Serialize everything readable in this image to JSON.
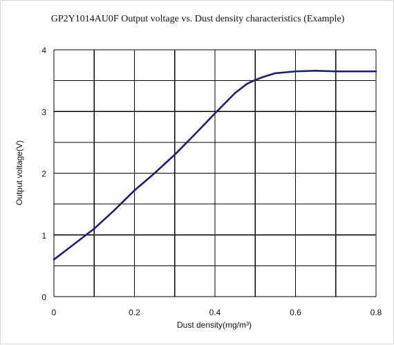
{
  "chart_data": {
    "type": "line",
    "title": "GP2Y1014AU0F Output voltage vs. Dust density characteristics (Example)",
    "xlabel": "Dust density(mg/m³)",
    "ylabel": "Output voltage(V)",
    "xlim": [
      0,
      0.8
    ],
    "ylim": [
      0,
      4
    ],
    "x_ticks": [
      0,
      0.1,
      0.2,
      0.3,
      0.4,
      0.5,
      0.6,
      0.7,
      0.8
    ],
    "y_ticks": [
      0,
      0.5,
      1,
      1.5,
      2,
      2.5,
      3,
      3.5,
      4
    ],
    "x_tick_labels": [
      "0",
      "0.2",
      "0.4",
      "0.6",
      "0.8"
    ],
    "y_tick_labels": [
      "0",
      "1",
      "2",
      "3",
      "4"
    ],
    "grid": true,
    "series": [
      {
        "x": [
          0,
          0.05,
          0.1,
          0.15,
          0.2,
          0.25,
          0.3,
          0.35,
          0.4,
          0.45,
          0.48,
          0.5,
          0.52,
          0.55,
          0.6,
          0.65,
          0.7,
          0.75,
          0.8
        ],
        "y": [
          0.6,
          0.85,
          1.1,
          1.4,
          1.72,
          2.0,
          2.3,
          2.63,
          2.97,
          3.3,
          3.45,
          3.51,
          3.56,
          3.62,
          3.65,
          3.66,
          3.65,
          3.65,
          3.65
        ],
        "color": "#1f1a7a"
      }
    ]
  }
}
